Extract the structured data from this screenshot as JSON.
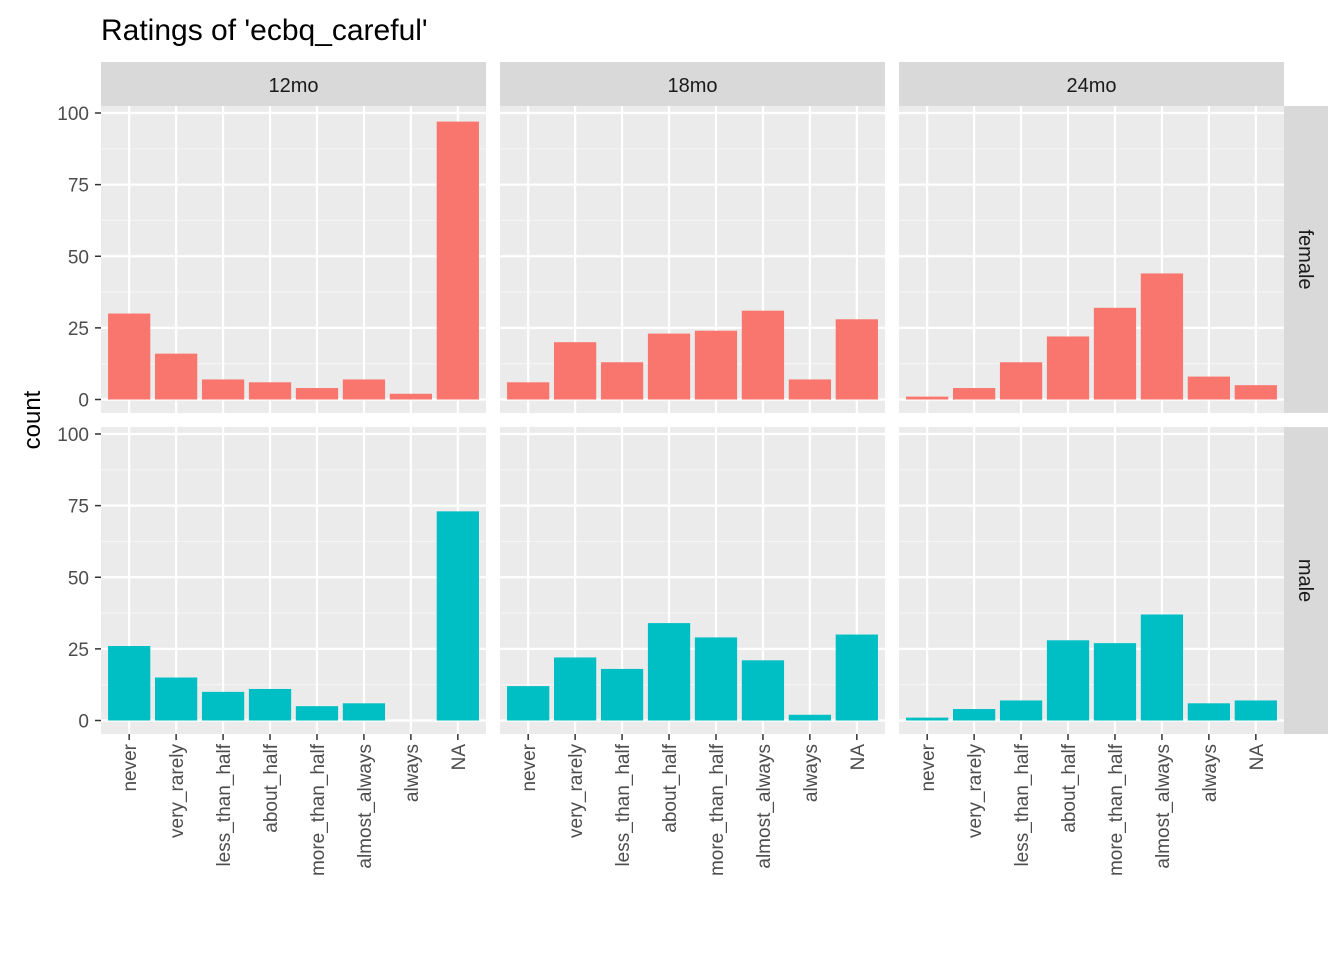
{
  "chart_data": {
    "type": "bar",
    "title": "Ratings of 'ecbq_careful'",
    "xlabel": "",
    "ylabel": "count",
    "ylim": [
      0,
      100
    ],
    "yticks": [
      0,
      25,
      50,
      75,
      100
    ],
    "categories": [
      "never",
      "very_rarely",
      "less_than_half",
      "about_half",
      "more_than_half",
      "almost_always",
      "always",
      "NA"
    ],
    "columns": [
      "12mo",
      "18mo",
      "24mo"
    ],
    "rows": [
      "female",
      "male"
    ],
    "grid": true,
    "colors": {
      "female": "#F8766D",
      "male": "#00BFC4"
    },
    "panels": [
      {
        "column": "12mo",
        "row": "female",
        "values": [
          30,
          16,
          7,
          6,
          4,
          7,
          2,
          97
        ]
      },
      {
        "column": "18mo",
        "row": "female",
        "values": [
          6,
          20,
          13,
          23,
          24,
          31,
          7,
          28
        ]
      },
      {
        "column": "24mo",
        "row": "female",
        "values": [
          1,
          4,
          13,
          22,
          32,
          44,
          8,
          5
        ]
      },
      {
        "column": "12mo",
        "row": "male",
        "values": [
          26,
          15,
          10,
          11,
          5,
          6,
          0,
          73
        ]
      },
      {
        "column": "18mo",
        "row": "male",
        "values": [
          12,
          22,
          18,
          34,
          29,
          21,
          2,
          30
        ]
      },
      {
        "column": "24mo",
        "row": "male",
        "values": [
          1,
          4,
          7,
          28,
          27,
          37,
          6,
          7
        ]
      }
    ]
  }
}
